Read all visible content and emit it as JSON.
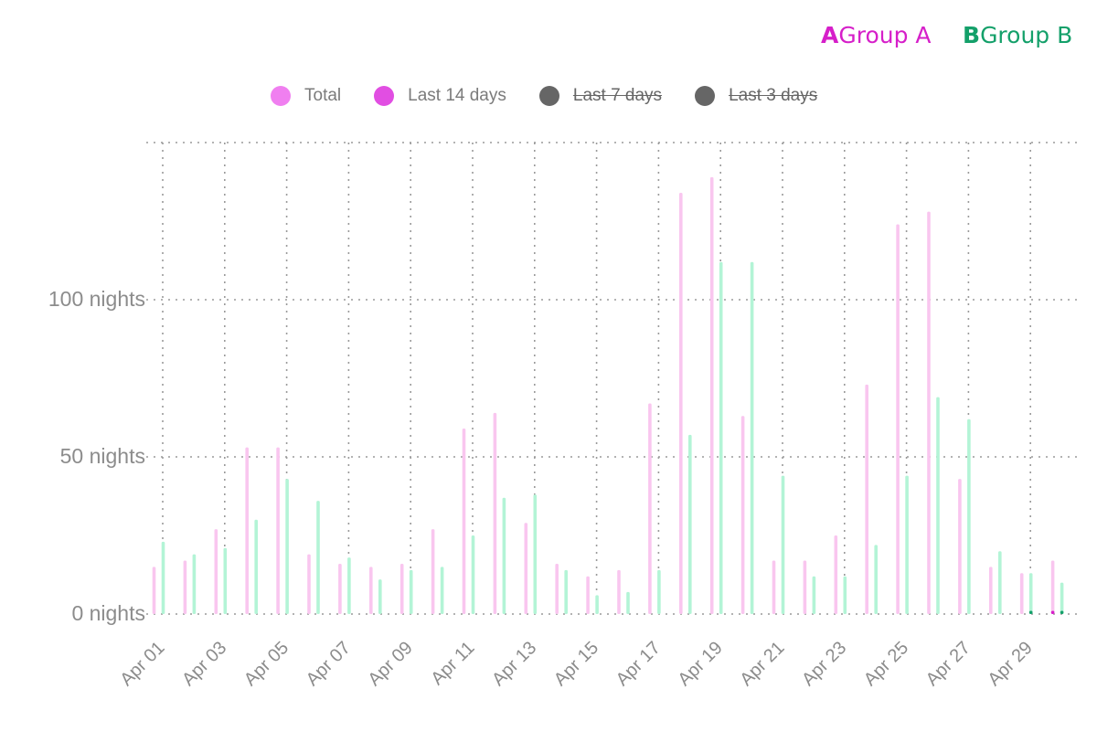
{
  "chart_data": {
    "type": "bar",
    "title": "",
    "xlabel": "",
    "ylabel": "",
    "y_unit_suffix": " nights",
    "ylim": [
      0,
      150
    ],
    "yticks": [
      0,
      50,
      100
    ],
    "grid": true,
    "groups": [
      {
        "letter": "A",
        "name": "Group A",
        "color": "#d61fc9"
      },
      {
        "letter": "B",
        "name": "Group B",
        "color": "#14a06a"
      }
    ],
    "legend": [
      {
        "name": "Total",
        "color": "#f07ff0",
        "active": true
      },
      {
        "name": "Last 14 days",
        "color": "#e14ee2",
        "active": true
      },
      {
        "name": "Last 7 days",
        "color": "#666666",
        "active": false
      },
      {
        "name": "Last 3 days",
        "color": "#666666",
        "active": false
      }
    ],
    "categories": [
      "Apr 01",
      "Apr 02",
      "Apr 03",
      "Apr 04",
      "Apr 05",
      "Apr 06",
      "Apr 07",
      "Apr 08",
      "Apr 09",
      "Apr 10",
      "Apr 11",
      "Apr 12",
      "Apr 13",
      "Apr 14",
      "Apr 15",
      "Apr 16",
      "Apr 17",
      "Apr 18",
      "Apr 19",
      "Apr 20",
      "Apr 21",
      "Apr 22",
      "Apr 23",
      "Apr 24",
      "Apr 25",
      "Apr 26",
      "Apr 27",
      "Apr 28",
      "Apr 29",
      "Apr 30"
    ],
    "xtick_labels": [
      "Apr 01",
      "Apr 03",
      "Apr 05",
      "Apr 07",
      "Apr 09",
      "Apr 11",
      "Apr 13",
      "Apr 15",
      "Apr 17",
      "Apr 19",
      "Apr 21",
      "Apr 23",
      "Apr 25",
      "Apr 27",
      "Apr 29"
    ],
    "series": [
      {
        "name": "Group A – Total",
        "group": "A",
        "color": "#f9c6ef",
        "values": [
          15,
          17,
          27,
          53,
          53,
          19,
          16,
          15,
          16,
          27,
          59,
          64,
          29,
          16,
          12,
          14,
          67,
          134,
          139,
          63,
          17,
          17,
          25,
          73,
          124,
          128,
          43,
          15,
          13,
          17
        ]
      },
      {
        "name": "Group B – Total",
        "group": "B",
        "color": "#b3f4d6",
        "values": [
          23,
          19,
          21,
          30,
          43,
          36,
          18,
          11,
          14,
          15,
          25,
          37,
          38,
          14,
          6,
          7,
          14,
          57,
          112,
          112,
          44,
          12,
          12,
          22,
          44,
          69,
          62,
          20,
          13,
          10
        ]
      },
      {
        "name": "Group A – Last 14 days",
        "group": "A",
        "color": "#d61fc9",
        "values": [
          0,
          0,
          0,
          0,
          0,
          0,
          0,
          0,
          0,
          0,
          0,
          0,
          0,
          0,
          0,
          0,
          0,
          0,
          0,
          0,
          0,
          0,
          0,
          0,
          0,
          0,
          0,
          0,
          0,
          1
        ]
      },
      {
        "name": "Group B – Last 14 days",
        "group": "B",
        "color": "#14a06a",
        "values": [
          0,
          0,
          0,
          0,
          0,
          0,
          0,
          0,
          0,
          0,
          0,
          0,
          0,
          0,
          0,
          0,
          0,
          0,
          0,
          0,
          0,
          0,
          0,
          0,
          0,
          0,
          0,
          0,
          1,
          1
        ]
      }
    ]
  }
}
